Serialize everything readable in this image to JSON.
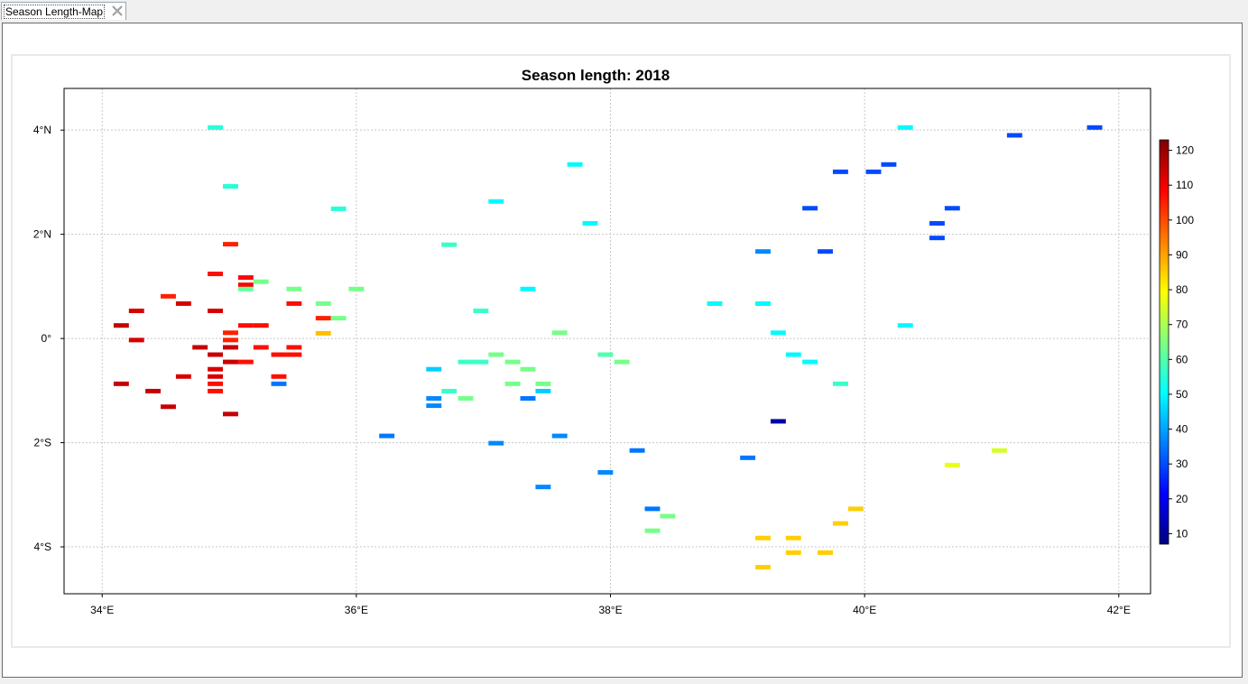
{
  "tab": {
    "label": "Season Length-Map"
  },
  "chart_data": {
    "type": "heatmap",
    "title": "Season length: 2018",
    "x_ticks": [
      "34°E",
      "36°E",
      "38°E",
      "40°E",
      "42°E"
    ],
    "x_tick_values": [
      34,
      36,
      38,
      40,
      42
    ],
    "y_ticks": [
      "4°N",
      "2°N",
      "0°",
      "2°S",
      "4°S"
    ],
    "y_tick_values": [
      4,
      2,
      0,
      -2,
      -4
    ],
    "xlim": [
      33.7,
      42.25
    ],
    "ylim": [
      -4.9,
      4.8
    ],
    "grid": true,
    "colorbar": {
      "min": 7,
      "max": 123,
      "ticks": [
        10,
        20,
        30,
        40,
        50,
        60,
        70,
        80,
        90,
        100,
        110,
        120
      ],
      "colormap": [
        "#00007f",
        "#0000ff",
        "#007fff",
        "#00ffff",
        "#7fff7f",
        "#ffff00",
        "#ff7f00",
        "#ff0000",
        "#7f0000"
      ]
    },
    "cell_size_deg": [
      0.12,
      0.12
    ],
    "points": [
      {
        "lon": 34.89,
        "lat": 4.05,
        "v": 55
      },
      {
        "lon": 35.01,
        "lat": 2.92,
        "v": 55
      },
      {
        "lon": 35.86,
        "lat": 2.49,
        "v": 55
      },
      {
        "lon": 35.01,
        "lat": 1.81,
        "v": 105
      },
      {
        "lon": 34.89,
        "lat": 1.24,
        "v": 107
      },
      {
        "lon": 35.13,
        "lat": 1.17,
        "v": 108
      },
      {
        "lon": 35.13,
        "lat": 1.03,
        "v": 108
      },
      {
        "lon": 35.13,
        "lat": 0.95,
        "v": 62
      },
      {
        "lon": 35.25,
        "lat": 1.09,
        "v": 64
      },
      {
        "lon": 35.51,
        "lat": 0.95,
        "v": 64
      },
      {
        "lon": 34.52,
        "lat": 0.81,
        "v": 105
      },
      {
        "lon": 34.64,
        "lat": 0.67,
        "v": 113
      },
      {
        "lon": 34.27,
        "lat": 0.53,
        "v": 113
      },
      {
        "lon": 34.89,
        "lat": 0.53,
        "v": 113
      },
      {
        "lon": 35.51,
        "lat": 0.67,
        "v": 107
      },
      {
        "lon": 35.74,
        "lat": 0.67,
        "v": 64
      },
      {
        "lon": 35.74,
        "lat": 0.39,
        "v": 105
      },
      {
        "lon": 35.86,
        "lat": 0.39,
        "v": 64
      },
      {
        "lon": 35.74,
        "lat": 0.1,
        "v": 87
      },
      {
        "lon": 34.15,
        "lat": 0.25,
        "v": 115
      },
      {
        "lon": 35.13,
        "lat": 0.25,
        "v": 107
      },
      {
        "lon": 35.25,
        "lat": 0.25,
        "v": 107
      },
      {
        "lon": 35.01,
        "lat": 0.11,
        "v": 105
      },
      {
        "lon": 34.27,
        "lat": -0.03,
        "v": 113
      },
      {
        "lon": 35.01,
        "lat": -0.03,
        "v": 105
      },
      {
        "lon": 34.77,
        "lat": -0.17,
        "v": 115
      },
      {
        "lon": 35.01,
        "lat": -0.17,
        "v": 115
      },
      {
        "lon": 35.25,
        "lat": -0.17,
        "v": 107
      },
      {
        "lon": 35.51,
        "lat": -0.17,
        "v": 107
      },
      {
        "lon": 34.89,
        "lat": -0.31,
        "v": 115
      },
      {
        "lon": 35.39,
        "lat": -0.31,
        "v": 107
      },
      {
        "lon": 35.51,
        "lat": -0.31,
        "v": 107
      },
      {
        "lon": 35.01,
        "lat": -0.45,
        "v": 115
      },
      {
        "lon": 35.13,
        "lat": -0.45,
        "v": 107
      },
      {
        "lon": 34.89,
        "lat": -0.59,
        "v": 113
      },
      {
        "lon": 34.89,
        "lat": -0.73,
        "v": 113
      },
      {
        "lon": 34.64,
        "lat": -0.73,
        "v": 113
      },
      {
        "lon": 35.39,
        "lat": -0.73,
        "v": 107
      },
      {
        "lon": 35.39,
        "lat": -0.87,
        "v": 35
      },
      {
        "lon": 34.15,
        "lat": -0.87,
        "v": 115
      },
      {
        "lon": 34.89,
        "lat": -0.87,
        "v": 107
      },
      {
        "lon": 34.89,
        "lat": -1.01,
        "v": 107
      },
      {
        "lon": 34.4,
        "lat": -1.01,
        "v": 115
      },
      {
        "lon": 34.52,
        "lat": -1.31,
        "v": 115
      },
      {
        "lon": 35.01,
        "lat": -1.45,
        "v": 115
      },
      {
        "lon": 36.0,
        "lat": 0.95,
        "v": 64
      },
      {
        "lon": 36.73,
        "lat": 1.8,
        "v": 57
      },
      {
        "lon": 37.1,
        "lat": 2.63,
        "v": 50
      },
      {
        "lon": 37.72,
        "lat": 3.34,
        "v": 50
      },
      {
        "lon": 37.84,
        "lat": 2.21,
        "v": 50
      },
      {
        "lon": 37.35,
        "lat": 0.95,
        "v": 50
      },
      {
        "lon": 36.98,
        "lat": 0.53,
        "v": 57
      },
      {
        "lon": 37.6,
        "lat": 0.11,
        "v": 64
      },
      {
        "lon": 37.1,
        "lat": -0.31,
        "v": 64
      },
      {
        "lon": 36.86,
        "lat": -0.45,
        "v": 57
      },
      {
        "lon": 36.98,
        "lat": -0.45,
        "v": 57
      },
      {
        "lon": 37.23,
        "lat": -0.45,
        "v": 64
      },
      {
        "lon": 37.35,
        "lat": -0.59,
        "v": 64
      },
      {
        "lon": 36.61,
        "lat": -0.59,
        "v": 45
      },
      {
        "lon": 37.23,
        "lat": -0.87,
        "v": 64
      },
      {
        "lon": 37.47,
        "lat": -0.87,
        "v": 64
      },
      {
        "lon": 37.47,
        "lat": -1.01,
        "v": 45
      },
      {
        "lon": 36.73,
        "lat": -1.01,
        "v": 57
      },
      {
        "lon": 36.86,
        "lat": -1.15,
        "v": 64
      },
      {
        "lon": 37.35,
        "lat": -1.15,
        "v": 35
      },
      {
        "lon": 36.61,
        "lat": -1.15,
        "v": 37
      },
      {
        "lon": 36.61,
        "lat": -1.29,
        "v": 37
      },
      {
        "lon": 36.24,
        "lat": -1.87,
        "v": 35
      },
      {
        "lon": 37.1,
        "lat": -2.01,
        "v": 37
      },
      {
        "lon": 37.6,
        "lat": -1.87,
        "v": 37
      },
      {
        "lon": 37.47,
        "lat": -2.85,
        "v": 37
      },
      {
        "lon": 37.96,
        "lat": -2.57,
        "v": 37
      },
      {
        "lon": 37.96,
        "lat": -0.31,
        "v": 60
      },
      {
        "lon": 38.09,
        "lat": -0.45,
        "v": 64
      },
      {
        "lon": 38.21,
        "lat": -2.15,
        "v": 35
      },
      {
        "lon": 38.33,
        "lat": -3.27,
        "v": 35
      },
      {
        "lon": 38.45,
        "lat": -3.41,
        "v": 64
      },
      {
        "lon": 38.33,
        "lat": -3.69,
        "v": 64
      },
      {
        "lon": 38.82,
        "lat": 0.67,
        "v": 50
      },
      {
        "lon": 39.2,
        "lat": 0.67,
        "v": 50
      },
      {
        "lon": 39.2,
        "lat": 1.67,
        "v": 37
      },
      {
        "lon": 39.32,
        "lat": 0.11,
        "v": 50
      },
      {
        "lon": 39.44,
        "lat": -0.31,
        "v": 50
      },
      {
        "lon": 39.57,
        "lat": -0.45,
        "v": 50
      },
      {
        "lon": 39.81,
        "lat": -0.87,
        "v": 57
      },
      {
        "lon": 39.32,
        "lat": -1.59,
        "v": 12
      },
      {
        "lon": 39.08,
        "lat": -2.29,
        "v": 35
      },
      {
        "lon": 39.57,
        "lat": 2.5,
        "v": 30
      },
      {
        "lon": 39.69,
        "lat": 1.67,
        "v": 30
      },
      {
        "lon": 39.81,
        "lat": 3.2,
        "v": 30
      },
      {
        "lon": 40.07,
        "lat": 3.2,
        "v": 30
      },
      {
        "lon": 40.19,
        "lat": 3.34,
        "v": 30
      },
      {
        "lon": 40.32,
        "lat": 4.05,
        "v": 50
      },
      {
        "lon": 40.32,
        "lat": 0.25,
        "v": 50
      },
      {
        "lon": 40.57,
        "lat": 2.21,
        "v": 30
      },
      {
        "lon": 40.57,
        "lat": 1.93,
        "v": 30
      },
      {
        "lon": 40.69,
        "lat": 2.5,
        "v": 30
      },
      {
        "lon": 41.18,
        "lat": 3.9,
        "v": 30
      },
      {
        "lon": 41.81,
        "lat": 4.05,
        "v": 30
      },
      {
        "lon": 41.06,
        "lat": -2.15,
        "v": 75
      },
      {
        "lon": 40.69,
        "lat": -2.43,
        "v": 77
      },
      {
        "lon": 39.93,
        "lat": -3.27,
        "v": 85
      },
      {
        "lon": 39.81,
        "lat": -3.55,
        "v": 85
      },
      {
        "lon": 39.2,
        "lat": -3.83,
        "v": 85
      },
      {
        "lon": 39.44,
        "lat": -3.83,
        "v": 85
      },
      {
        "lon": 39.44,
        "lat": -4.11,
        "v": 85
      },
      {
        "lon": 39.69,
        "lat": -4.11,
        "v": 85
      },
      {
        "lon": 39.2,
        "lat": -4.39,
        "v": 85
      }
    ]
  }
}
